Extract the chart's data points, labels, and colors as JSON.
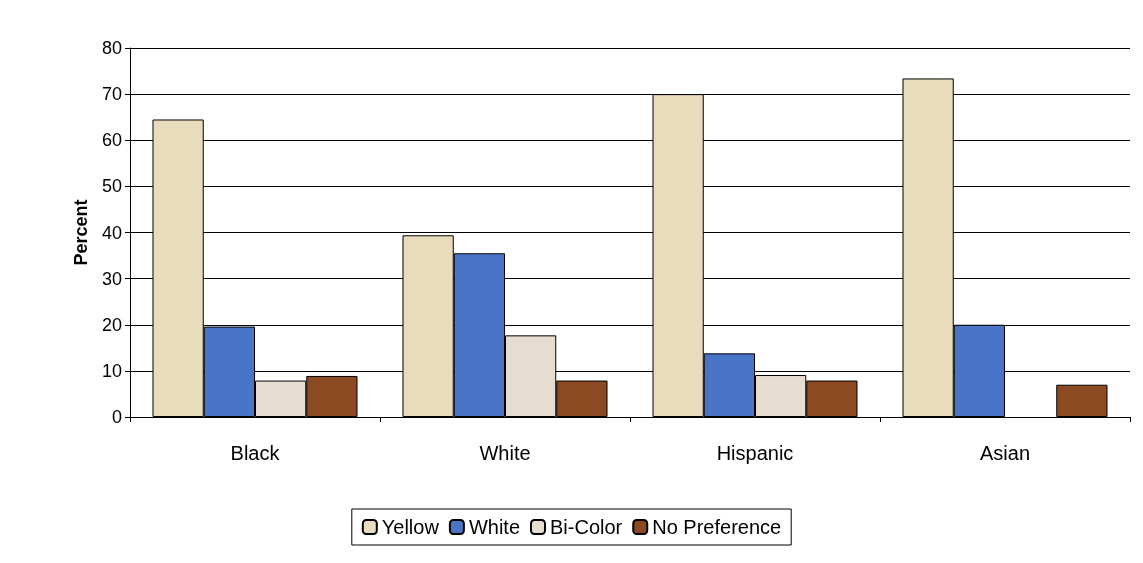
{
  "chart_data": {
    "type": "bar",
    "ylabel": "Percent",
    "categories": [
      "Black",
      "White",
      "Hispanic",
      "Asian"
    ],
    "series": [
      {
        "name": "Yellow",
        "color": "#e8dcbc",
        "values": [
          64.5,
          39.4,
          70,
          73.4
        ]
      },
      {
        "name": "White",
        "color": "#4a74c8",
        "values": [
          19.6,
          35.5,
          13.8,
          20
        ]
      },
      {
        "name": "Bi-Color",
        "color": "#e6ddd0",
        "values": [
          7.9,
          17.7,
          9.1,
          null
        ]
      },
      {
        "name": "No Preference",
        "color": "#8b4a22",
        "values": [
          8.9,
          7.9,
          7.9,
          7
        ]
      }
    ],
    "ylim": [
      0,
      80
    ],
    "yticks": [
      0,
      10,
      20,
      30,
      40,
      50,
      60,
      70,
      80
    ],
    "grid": "y",
    "legend": "bottom"
  }
}
